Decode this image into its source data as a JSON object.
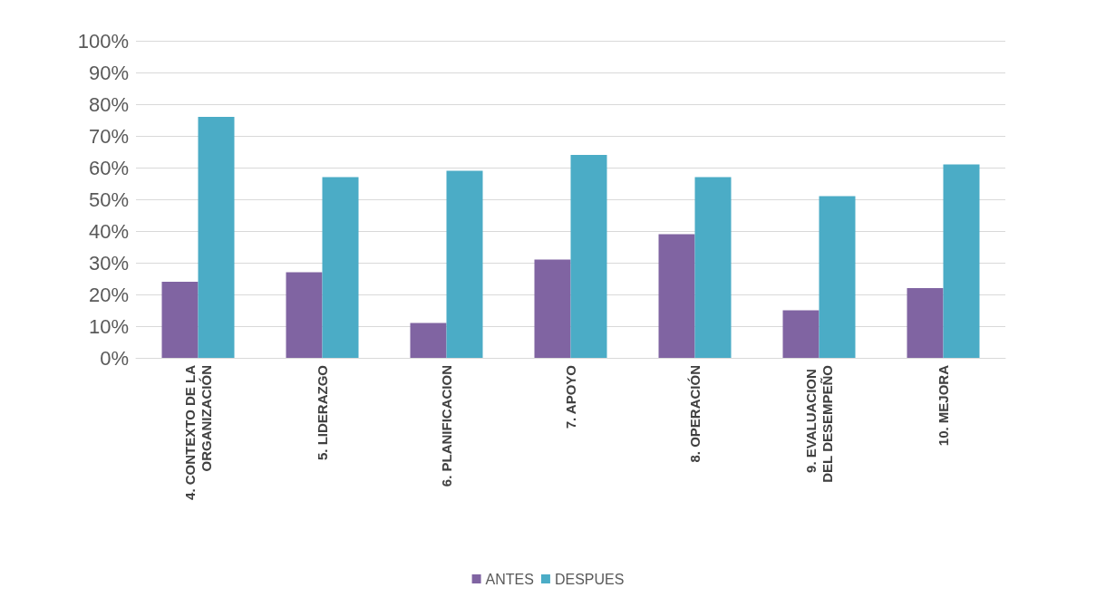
{
  "chart_data": {
    "type": "bar",
    "categories": [
      "4. CONTEXTO DE LA ORGANIZACIÓN",
      "5. LIDERAZGO",
      "6. PLANIFICACION",
      "7. APOYO",
      "8. OPERACIÓN",
      "9. EVALUACION DEL DESEMPEÑO",
      "10. MEJORA"
    ],
    "series": [
      {
        "name": "ANTES",
        "color": "#8064a2",
        "values": [
          24,
          27,
          11,
          31,
          39,
          15,
          22
        ]
      },
      {
        "name": "DESPUES",
        "color": "#4bacc6",
        "values": [
          76,
          57,
          59,
          64,
          57,
          51,
          61
        ]
      }
    ],
    "ylim": [
      0,
      100
    ],
    "yticks": [
      {
        "value": 0,
        "label": "0%"
      },
      {
        "value": 10,
        "label": "10%"
      },
      {
        "value": 20,
        "label": "20%"
      },
      {
        "value": 30,
        "label": "30%"
      },
      {
        "value": 40,
        "label": "40%"
      },
      {
        "value": 50,
        "label": "50%"
      },
      {
        "value": 60,
        "label": "60%"
      },
      {
        "value": 70,
        "label": "70%"
      },
      {
        "value": 80,
        "label": "80%"
      },
      {
        "value": 90,
        "label": "90%"
      },
      {
        "value": 100,
        "label": "100%"
      }
    ],
    "grid": "y",
    "legend": "bottom"
  }
}
